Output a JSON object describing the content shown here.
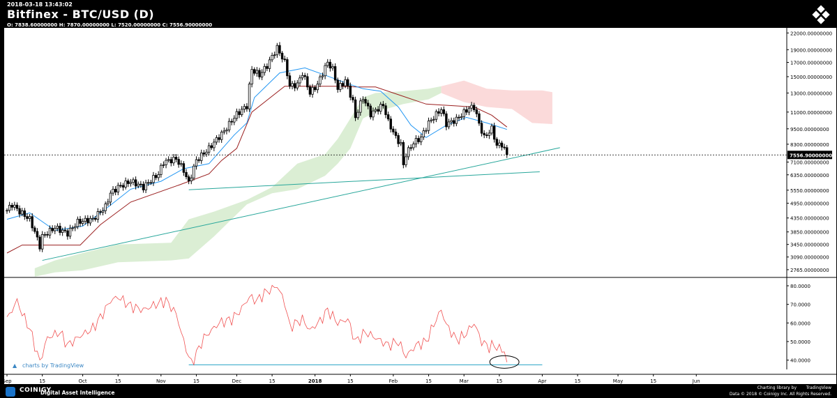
{
  "header": {
    "timestamp": "2018-03-18 13:43:02",
    "title": "Bitfinex - BTC/USD (D)",
    "ohlc": "O: 7838.60000000 H: 7870.00000000 L: 7520.00000000 C: 7556.90000000"
  },
  "footer": {
    "brand": "COINIGY",
    "tagline": "Digital Asset Intelligence",
    "charting_credit": "Charting library by",
    "tradingview": "TradingView",
    "data_credit": "Data © 2018 © Coinigy Inc. All Rights Reserved.",
    "watermark": "charts by TradingView"
  },
  "colors": {
    "candle_up": "#ffffff",
    "candle_down": "#000000",
    "tenkan": "#2196f3",
    "kijun": "#9a1e1e",
    "cloud_bull": "#dbeed4",
    "cloud_bear": "#fbdada",
    "trendline": "#26a69a",
    "rsi": "#f05050",
    "rsi_level": "#26a3c4"
  },
  "chart_data": [
    {
      "type": "candlestick",
      "title": "Bitfinex - BTC/USD (D)",
      "y_scale": "log",
      "ylim": [
        2600,
        23000
      ],
      "y_ticks": [
        "22000.00000000",
        "19000.00000000",
        "17000.00000000",
        "15000.00000000",
        "13000.00000000",
        "11000.00000000",
        "9500.00000000",
        "8300.00000000",
        "7100.00000000",
        "6350.00000000",
        "5550.00000000",
        "4950.00000000",
        "4350.00000000",
        "3850.00000000",
        "3450.00000000",
        "3090.00000000",
        "2765.00000000"
      ],
      "last_price_label": "7556.90000000",
      "last_price": 7556.9,
      "x_start": "2017-09-01",
      "x_ticks": [
        "Sep",
        "15",
        "Oct",
        "15",
        "Nov",
        "15",
        "Dec",
        "15",
        "2018",
        "15",
        "Feb",
        "15",
        "Mar",
        "15",
        "Apr",
        "15",
        "May",
        "15",
        "Jun"
      ],
      "x_tick_dates": [
        "2017-09-01",
        "2017-09-15",
        "2017-10-01",
        "2017-10-15",
        "2017-11-01",
        "2017-11-15",
        "2017-12-01",
        "2017-12-15",
        "2018-01-01",
        "2018-01-15",
        "2018-02-01",
        "2018-02-15",
        "2018-03-01",
        "2018-03-15",
        "2018-04-01",
        "2018-04-15",
        "2018-05-01",
        "2018-05-15",
        "2018-06-01"
      ],
      "price_anchors": [
        [
          "2017-09-01",
          4650
        ],
        [
          "2017-09-03",
          4900
        ],
        [
          "2017-09-06",
          4600
        ],
        [
          "2017-09-10",
          4300
        ],
        [
          "2017-09-14",
          3400
        ],
        [
          "2017-09-15",
          3700
        ],
        [
          "2017-09-20",
          4000
        ],
        [
          "2017-09-25",
          3800
        ],
        [
          "2017-09-29",
          4200
        ],
        [
          "2017-10-05",
          4300
        ],
        [
          "2017-10-10",
          4800
        ],
        [
          "2017-10-12",
          5400
        ],
        [
          "2017-10-15",
          5700
        ],
        [
          "2017-10-20",
          6000
        ],
        [
          "2017-10-25",
          5700
        ],
        [
          "2017-10-31",
          6400
        ],
        [
          "2017-11-02",
          7100
        ],
        [
          "2017-11-07",
          7300
        ],
        [
          "2017-11-10",
          6600
        ],
        [
          "2017-11-12",
          5900
        ],
        [
          "2017-11-15",
          7200
        ],
        [
          "2017-11-20",
          8000
        ],
        [
          "2017-11-26",
          9300
        ],
        [
          "2017-11-28",
          9900
        ],
        [
          "2017-12-01",
          10800
        ],
        [
          "2017-12-05",
          11600
        ],
        [
          "2017-12-07",
          16000
        ],
        [
          "2017-12-10",
          15200
        ],
        [
          "2017-12-13",
          16500
        ],
        [
          "2017-12-17",
          19300
        ],
        [
          "2017-12-20",
          17000
        ],
        [
          "2017-12-22",
          13800
        ],
        [
          "2017-12-25",
          14000
        ],
        [
          "2017-12-27",
          15500
        ],
        [
          "2017-12-30",
          13000
        ],
        [
          "2018-01-02",
          14000
        ],
        [
          "2018-01-06",
          17000
        ],
        [
          "2018-01-08",
          16000
        ],
        [
          "2018-01-10",
          13500
        ],
        [
          "2018-01-13",
          14500
        ],
        [
          "2018-01-16",
          12000
        ],
        [
          "2018-01-17",
          10500
        ],
        [
          "2018-01-20",
          12500
        ],
        [
          "2018-01-23",
          10800
        ],
        [
          "2018-01-28",
          11700
        ],
        [
          "2018-01-30",
          10100
        ],
        [
          "2018-02-02",
          8800
        ],
        [
          "2018-02-04",
          8300
        ],
        [
          "2018-02-05",
          6900
        ],
        [
          "2018-02-06",
          7600
        ],
        [
          "2018-02-09",
          8400
        ],
        [
          "2018-02-12",
          8800
        ],
        [
          "2018-02-15",
          10000
        ],
        [
          "2018-02-20",
          11300
        ],
        [
          "2018-02-22",
          9900
        ],
        [
          "2018-02-26",
          10300
        ],
        [
          "2018-03-03",
          11400
        ],
        [
          "2018-03-05",
          11500
        ],
        [
          "2018-03-07",
          9900
        ],
        [
          "2018-03-09",
          8800
        ],
        [
          "2018-03-12",
          9500
        ],
        [
          "2018-03-14",
          8200
        ],
        [
          "2018-03-16",
          8300
        ],
        [
          "2018-03-18",
          7556.9
        ]
      ],
      "tenkan_anchors": [
        [
          "2017-09-01",
          4300
        ],
        [
          "2017-09-10",
          4550
        ],
        [
          "2017-09-20",
          3900
        ],
        [
          "2017-10-01",
          4050
        ],
        [
          "2017-10-10",
          4700
        ],
        [
          "2017-10-20",
          5600
        ],
        [
          "2017-11-01",
          6000
        ],
        [
          "2017-11-10",
          6700
        ],
        [
          "2017-11-20",
          7000
        ],
        [
          "2017-11-30",
          9000
        ],
        [
          "2017-12-05",
          10000
        ],
        [
          "2017-12-08",
          12500
        ],
        [
          "2017-12-18",
          15500
        ],
        [
          "2017-12-28",
          16200
        ],
        [
          "2018-01-05",
          15200
        ],
        [
          "2018-01-15",
          14000
        ],
        [
          "2018-01-20",
          13500
        ],
        [
          "2018-01-27",
          13200
        ],
        [
          "2018-02-03",
          11500
        ],
        [
          "2018-02-08",
          9800
        ],
        [
          "2018-02-14",
          8800
        ],
        [
          "2018-02-22",
          9800
        ],
        [
          "2018-03-02",
          10500
        ],
        [
          "2018-03-10",
          10000
        ],
        [
          "2018-03-18",
          9450
        ]
      ],
      "kijun_anchors": [
        [
          "2017-09-01",
          3200
        ],
        [
          "2017-09-07",
          3430
        ],
        [
          "2017-09-30",
          3430
        ],
        [
          "2017-10-08",
          4100
        ],
        [
          "2017-10-20",
          5000
        ],
        [
          "2017-11-08",
          5800
        ],
        [
          "2017-11-20",
          6400
        ],
        [
          "2017-11-25",
          7200
        ],
        [
          "2017-12-01",
          8000
        ],
        [
          "2017-12-07",
          11000
        ],
        [
          "2017-12-20",
          13800
        ],
        [
          "2018-01-10",
          13800
        ],
        [
          "2018-01-18",
          13700
        ],
        [
          "2018-01-25",
          13700
        ],
        [
          "2018-02-01",
          13000
        ],
        [
          "2018-02-14",
          11800
        ],
        [
          "2018-03-05",
          11500
        ],
        [
          "2018-03-12",
          10700
        ],
        [
          "2018-03-18",
          9650
        ]
      ],
      "cloud_bull_upper": [
        [
          "2017-09-12",
          2800
        ],
        [
          "2017-09-20",
          3000
        ],
        [
          "2017-10-01",
          3200
        ],
        [
          "2017-10-15",
          3450
        ],
        [
          "2017-11-05",
          3500
        ],
        [
          "2017-11-12",
          4300
        ],
        [
          "2017-11-22",
          4600
        ],
        [
          "2017-12-05",
          5100
        ],
        [
          "2017-12-15",
          5700
        ],
        [
          "2017-12-25",
          7000
        ],
        [
          "2018-01-05",
          7600
        ],
        [
          "2018-01-10",
          8700
        ],
        [
          "2018-01-15",
          10400
        ],
        [
          "2018-01-20",
          12500
        ],
        [
          "2018-01-25",
          13000
        ],
        [
          "2018-02-05",
          13200
        ],
        [
          "2018-02-15",
          13500
        ],
        [
          "2018-02-20",
          13800
        ]
      ],
      "cloud_bull_lower": [
        [
          "2017-09-12",
          2600
        ],
        [
          "2017-09-20",
          2700
        ],
        [
          "2017-10-01",
          2750
        ],
        [
          "2017-10-15",
          2950
        ],
        [
          "2017-11-05",
          3000
        ],
        [
          "2017-11-12",
          3050
        ],
        [
          "2017-11-22",
          3700
        ],
        [
          "2017-12-05",
          4900
        ],
        [
          "2017-12-15",
          5400
        ],
        [
          "2017-12-25",
          5600
        ],
        [
          "2018-01-05",
          6300
        ],
        [
          "2018-01-10",
          7000
        ],
        [
          "2018-01-15",
          8000
        ],
        [
          "2018-01-20",
          10400
        ],
        [
          "2018-01-25",
          11000
        ],
        [
          "2018-02-05",
          11800
        ],
        [
          "2018-02-15",
          12300
        ],
        [
          "2018-02-20",
          13000
        ]
      ],
      "cloud_bear_upper": [
        [
          "2018-02-20",
          13800
        ],
        [
          "2018-03-01",
          14500
        ],
        [
          "2018-03-10",
          13500
        ],
        [
          "2018-03-20",
          13300
        ],
        [
          "2018-04-01",
          13300
        ],
        [
          "2018-04-05",
          13100
        ]
      ],
      "cloud_bear_lower": [
        [
          "2018-02-20",
          13000
        ],
        [
          "2018-03-01",
          12000
        ],
        [
          "2018-03-10",
          11500
        ],
        [
          "2018-03-20",
          11300
        ],
        [
          "2018-03-28",
          10000
        ],
        [
          "2018-04-05",
          9900
        ]
      ],
      "trendlines": [
        [
          [
            "2017-09-15",
            3000
          ],
          [
            "2018-04-08",
            8050
          ]
        ],
        [
          [
            "2017-11-12",
            5570
          ],
          [
            "2018-03-31",
            6520
          ]
        ]
      ]
    },
    {
      "type": "line",
      "title": "RSI",
      "ylim": [
        35,
        83
      ],
      "y_ticks": [
        "80.0000",
        "70.0000",
        "60.0000",
        "50.0000",
        "40.0000"
      ],
      "rsi_anchors": [
        [
          "2017-09-01",
          62
        ],
        [
          "2017-09-05",
          72
        ],
        [
          "2017-09-07",
          65
        ],
        [
          "2017-09-10",
          57
        ],
        [
          "2017-09-14",
          39
        ],
        [
          "2017-09-17",
          52
        ],
        [
          "2017-09-22",
          55
        ],
        [
          "2017-09-25",
          48
        ],
        [
          "2017-09-30",
          53
        ],
        [
          "2017-10-05",
          57
        ],
        [
          "2017-10-08",
          63
        ],
        [
          "2017-10-12",
          72
        ],
        [
          "2017-10-15",
          74
        ],
        [
          "2017-10-20",
          69
        ],
        [
          "2017-10-25",
          67
        ],
        [
          "2017-10-30",
          70
        ],
        [
          "2017-11-03",
          72
        ],
        [
          "2017-11-07",
          65
        ],
        [
          "2017-11-10",
          50
        ],
        [
          "2017-11-13",
          38
        ],
        [
          "2017-11-18",
          52
        ],
        [
          "2017-11-24",
          60
        ],
        [
          "2017-11-29",
          62
        ],
        [
          "2017-12-02",
          66
        ],
        [
          "2017-12-06",
          74
        ],
        [
          "2017-12-09",
          72
        ],
        [
          "2017-12-12",
          76
        ],
        [
          "2017-12-17",
          80
        ],
        [
          "2017-12-20",
          71
        ],
        [
          "2017-12-22",
          58
        ],
        [
          "2017-12-27",
          62
        ],
        [
          "2017-12-30",
          56
        ],
        [
          "2018-01-03",
          61
        ],
        [
          "2018-01-06",
          67
        ],
        [
          "2018-01-10",
          60
        ],
        [
          "2018-01-14",
          62
        ],
        [
          "2018-01-17",
          50
        ],
        [
          "2018-01-21",
          55
        ],
        [
          "2018-01-25",
          52
        ],
        [
          "2018-01-30",
          48
        ],
        [
          "2018-02-03",
          50
        ],
        [
          "2018-02-06",
          42
        ],
        [
          "2018-02-10",
          48
        ],
        [
          "2018-02-14",
          50
        ],
        [
          "2018-02-18",
          62
        ],
        [
          "2018-02-20",
          67
        ],
        [
          "2018-02-22",
          59
        ],
        [
          "2018-02-26",
          51
        ],
        [
          "2018-03-01",
          53
        ],
        [
          "2018-03-05",
          60
        ],
        [
          "2018-03-08",
          50
        ],
        [
          "2018-03-11",
          47
        ],
        [
          "2018-03-13",
          48
        ],
        [
          "2018-03-15",
          46
        ],
        [
          "2018-03-17",
          45
        ],
        [
          "2018-03-18",
          38
        ]
      ],
      "level": 37.5
    }
  ]
}
